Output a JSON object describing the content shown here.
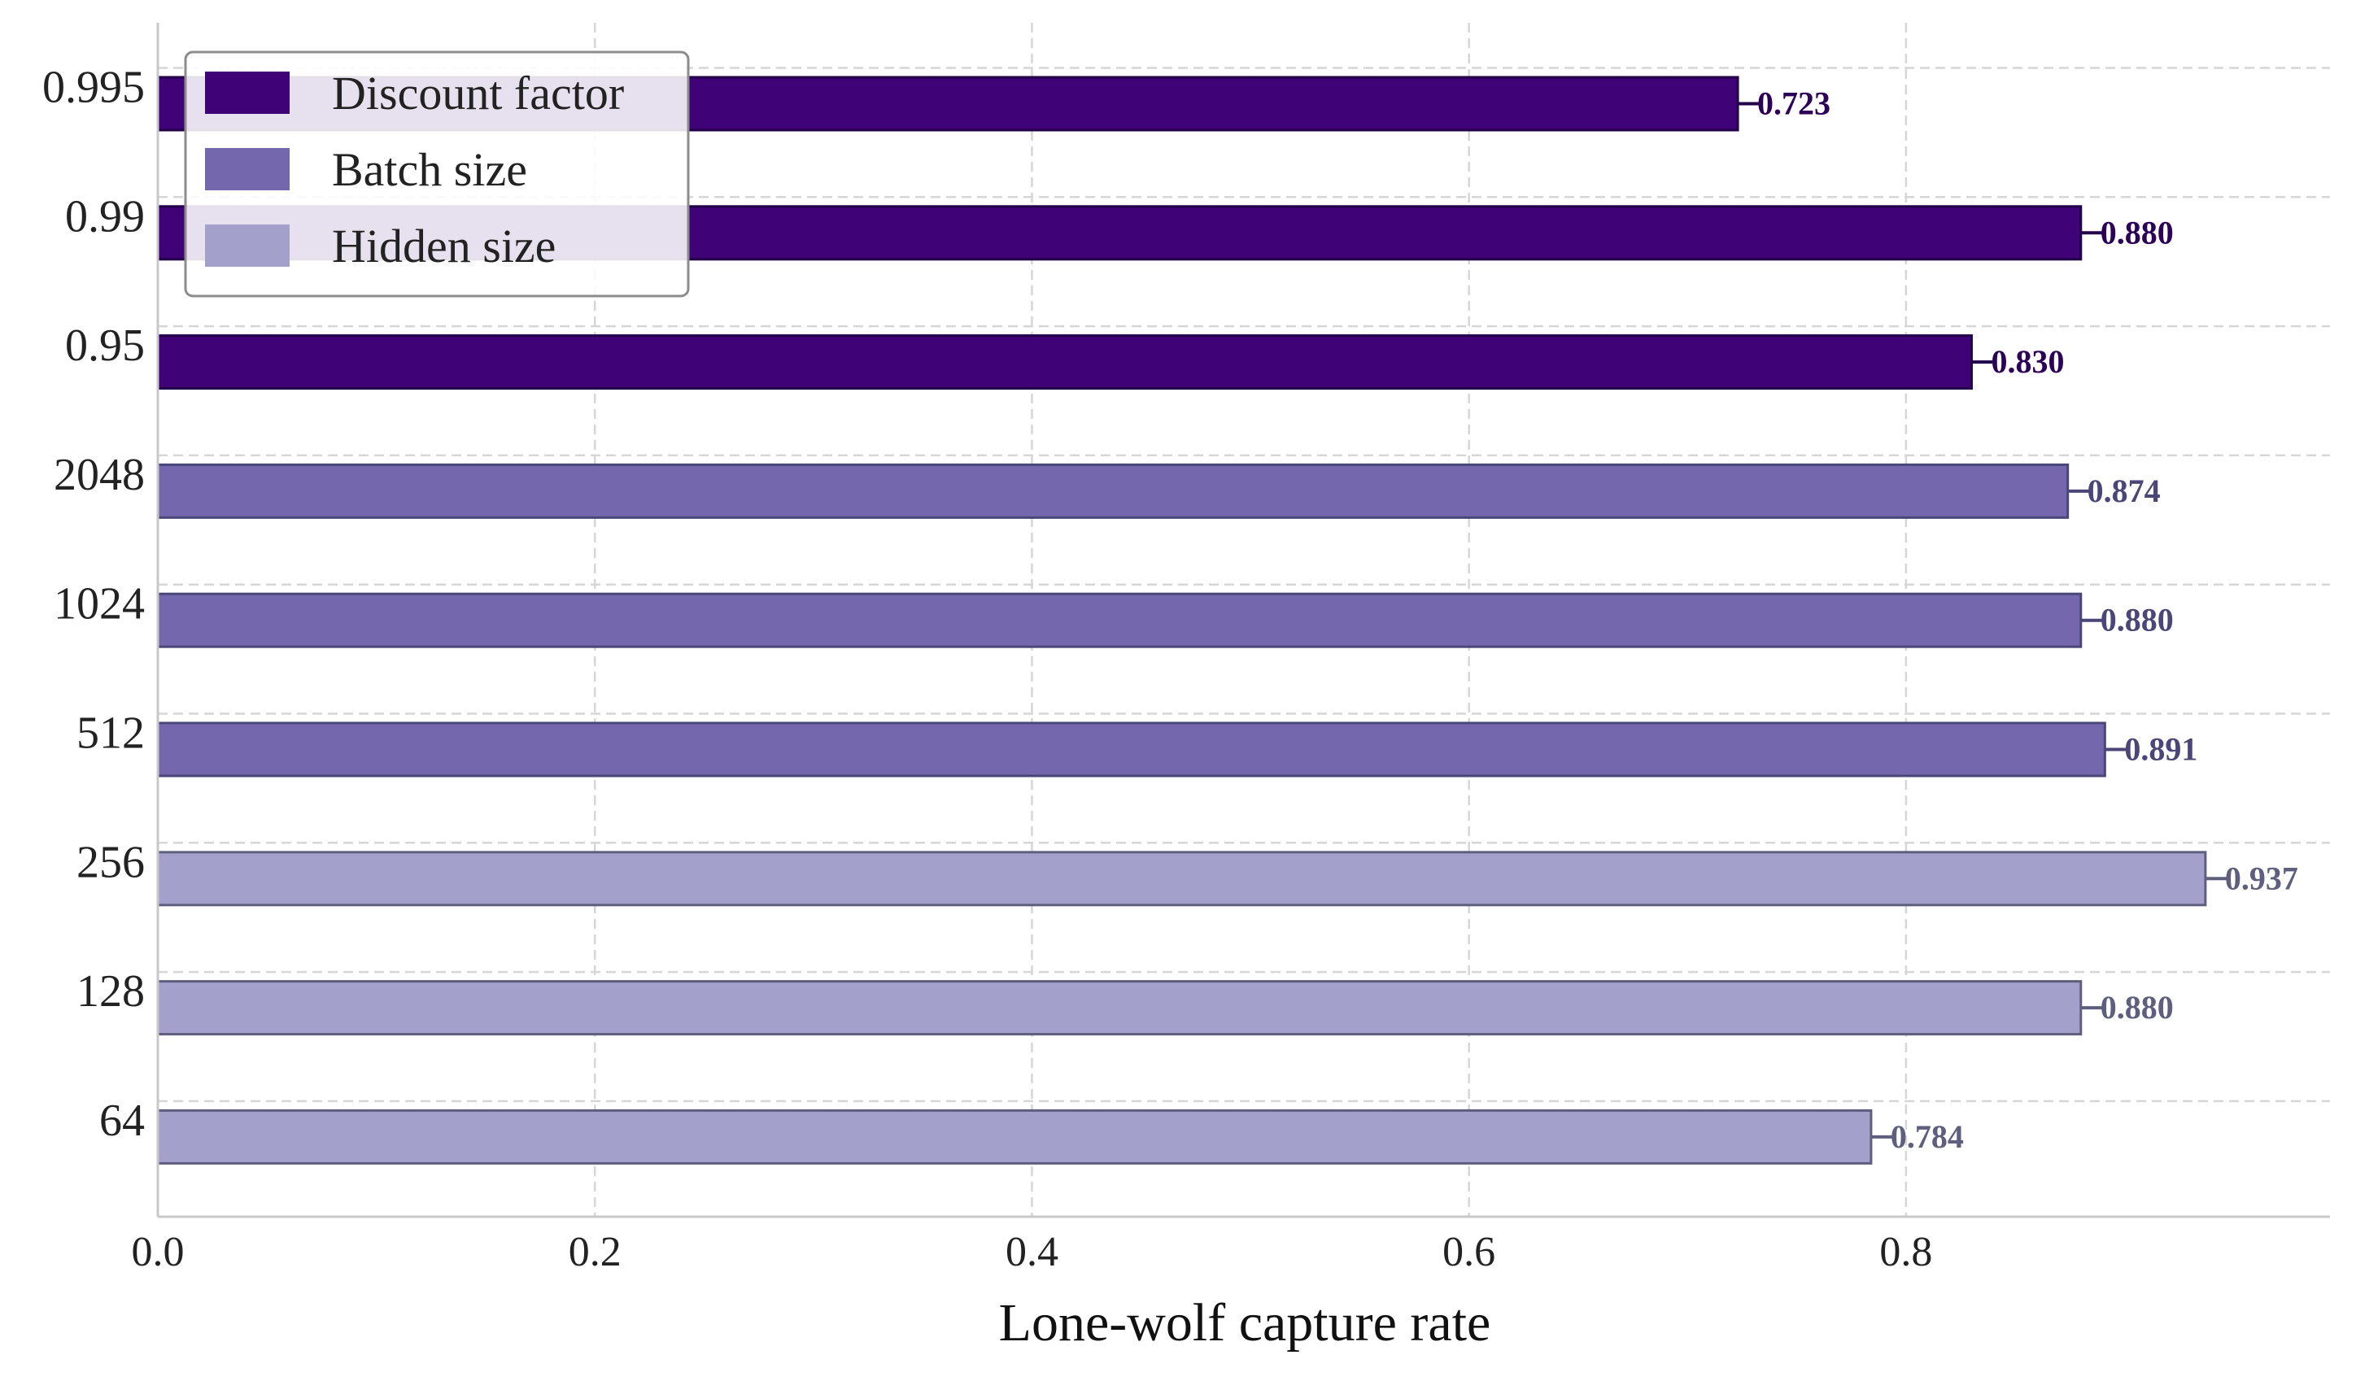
{
  "chart_data": {
    "type": "bar",
    "orientation": "horizontal",
    "xlabel": "Lone-wolf capture rate",
    "ylabel": "",
    "xlim": [
      0,
      0.994
    ],
    "xticks": [
      "0.0",
      "0.2",
      "0.4",
      "0.6",
      "0.8"
    ],
    "grid": true,
    "legend_position": "top-left",
    "categories": [
      "0.995",
      "0.99",
      "0.95",
      "2048",
      "1024",
      "512",
      "256",
      "128",
      "64"
    ],
    "values": [
      0.723,
      0.88,
      0.83,
      0.874,
      0.88,
      0.891,
      0.937,
      0.88,
      0.784
    ],
    "value_labels": [
      "0.723",
      "0.880",
      "0.830",
      "0.874",
      "0.880",
      "0.891",
      "0.937",
      "0.880",
      "0.784"
    ],
    "groups": [
      0,
      0,
      0,
      1,
      1,
      1,
      2,
      2,
      2
    ],
    "series": [
      {
        "name": "Discount factor",
        "color": "#3f0377",
        "edge": "#22004a",
        "label_color": "#2b0056"
      },
      {
        "name": "Batch size",
        "color": "#7567ad",
        "edge": "#4a4778",
        "label_color": "#4a4778"
      },
      {
        "name": "Hidden size",
        "color": "#a3a0cb",
        "edge": "#5e5e7e",
        "label_color": "#5e5e7e"
      }
    ]
  }
}
